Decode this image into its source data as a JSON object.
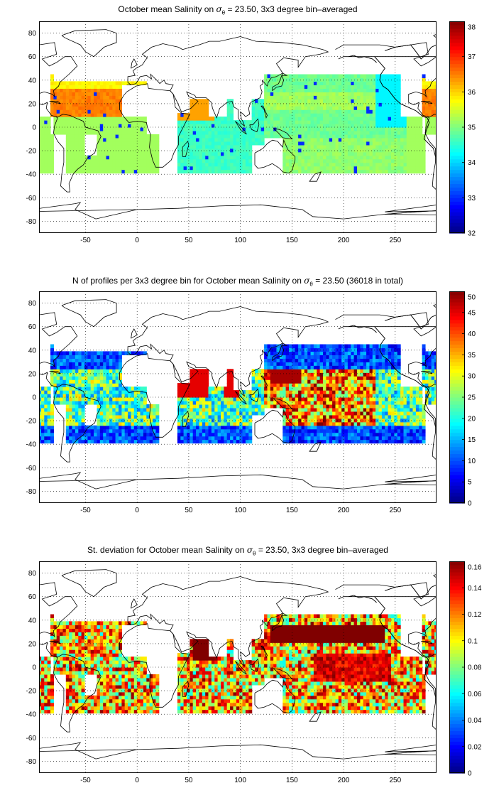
{
  "panels": [
    {
      "title_pre": "October mean Salinity on ",
      "title_sigma": "σ",
      "title_sub": "θ",
      "title_post": " = 23.50, 3x3 degree bin–averaged",
      "colorbar": {
        "min": 32,
        "max": 38,
        "ticks": [
          "32",
          "33",
          "34",
          "35",
          "36",
          "37",
          "38"
        ]
      },
      "field": "salinity"
    },
    {
      "title_pre": "N of profiles per 3x3 degree bin for October mean Salinity on ",
      "title_sigma": "σ",
      "title_sub": "θ",
      "title_post": " = 23.50 (36018 in total)",
      "colorbar": {
        "min": 0,
        "max": 50,
        "ticks": [
          "0",
          "5",
          "10",
          "15",
          "20",
          "25",
          "30",
          "35",
          "40",
          "45",
          "50"
        ]
      },
      "field": "count"
    },
    {
      "title_pre": "St. deviation for October mean Salinity on ",
      "title_sigma": "σ",
      "title_sub": "θ",
      "title_post": " = 23.50, 3x3 degree bin–averaged",
      "colorbar": {
        "min": 0,
        "max": 0.16,
        "ticks": [
          "0",
          "0.02",
          "0.04",
          "0.06",
          "0.08",
          "0.1",
          "0.12",
          "0.14",
          "0.16"
        ]
      },
      "field": "stdev"
    }
  ],
  "axes": {
    "x_ticks": [
      "-50",
      "0",
      "50",
      "100",
      "150",
      "200",
      "250"
    ],
    "y_ticks": [
      "80",
      "60",
      "40",
      "20",
      "0",
      "-20",
      "-40",
      "-60",
      "-80"
    ],
    "xlim": [
      -95,
      290
    ],
    "ylim": [
      -90,
      90
    ],
    "grid": "dotted"
  },
  "colormap": "jet"
}
